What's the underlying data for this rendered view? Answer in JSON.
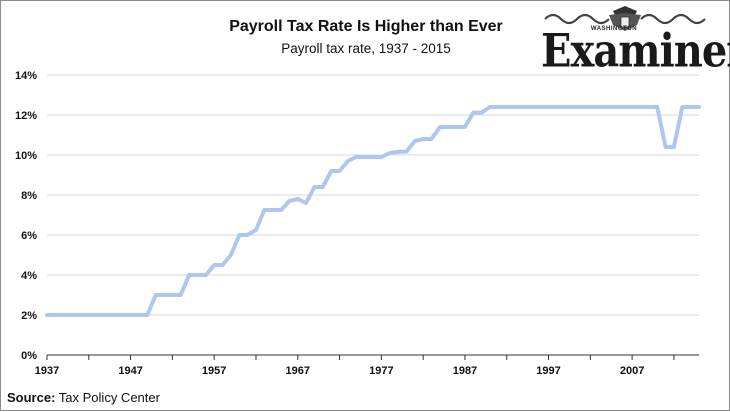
{
  "source": {
    "label": "Source:",
    "text": "Tax Policy Center"
  },
  "logo": {
    "top_text": "WASHINGTON",
    "word": "Examiner"
  },
  "chart_data": {
    "type": "line",
    "title": "Payroll Tax Rate Is Higher than Ever",
    "subtitle": "Payroll tax rate, 1937 - 2015",
    "xlabel": "",
    "ylabel": "",
    "xlim": [
      1937,
      2015
    ],
    "ylim": [
      0,
      14
    ],
    "y_ticks": [
      "0%",
      "2%",
      "4%",
      "6%",
      "8%",
      "10%",
      "12%",
      "14%"
    ],
    "x_ticks": [
      "1937",
      "1947",
      "1957",
      "1967",
      "1977",
      "1987",
      "1997",
      "2007"
    ],
    "grid": "horizontal",
    "line_color": "#aec6f0",
    "series": [
      {
        "x": [
          1937,
          1938,
          1939,
          1940,
          1941,
          1942,
          1943,
          1944,
          1945,
          1946,
          1947,
          1948,
          1949,
          1950,
          1951,
          1952,
          1953,
          1954,
          1955,
          1956,
          1957,
          1958,
          1959,
          1960,
          1961,
          1962,
          1963,
          1964,
          1965,
          1966,
          1967,
          1968,
          1969,
          1970,
          1971,
          1972,
          1973,
          1974,
          1975,
          1976,
          1977,
          1978,
          1979,
          1980,
          1981,
          1982,
          1983,
          1984,
          1985,
          1986,
          1987,
          1988,
          1989,
          1990,
          1991,
          1992,
          1993,
          1994,
          1995,
          1996,
          1997,
          1998,
          1999,
          2000,
          2001,
          2002,
          2003,
          2004,
          2005,
          2006,
          2007,
          2008,
          2009,
          2010,
          2011,
          2012,
          2013,
          2014,
          2015
        ],
        "values": [
          2.0,
          2.0,
          2.0,
          2.0,
          2.0,
          2.0,
          2.0,
          2.0,
          2.0,
          2.0,
          2.0,
          2.0,
          2.0,
          3.0,
          3.0,
          3.0,
          3.0,
          4.0,
          4.0,
          4.0,
          4.5,
          4.5,
          5.0,
          6.0,
          6.0,
          6.25,
          7.25,
          7.25,
          7.25,
          7.7,
          7.8,
          7.6,
          8.4,
          8.4,
          9.2,
          9.2,
          9.7,
          9.9,
          9.9,
          9.9,
          9.9,
          10.1,
          10.16,
          10.16,
          10.7,
          10.8,
          10.8,
          11.4,
          11.4,
          11.4,
          11.4,
          12.12,
          12.12,
          12.4,
          12.4,
          12.4,
          12.4,
          12.4,
          12.4,
          12.4,
          12.4,
          12.4,
          12.4,
          12.4,
          12.4,
          12.4,
          12.4,
          12.4,
          12.4,
          12.4,
          12.4,
          12.4,
          12.4,
          12.4,
          10.4,
          10.4,
          12.4,
          12.4,
          12.4
        ]
      }
    ]
  }
}
